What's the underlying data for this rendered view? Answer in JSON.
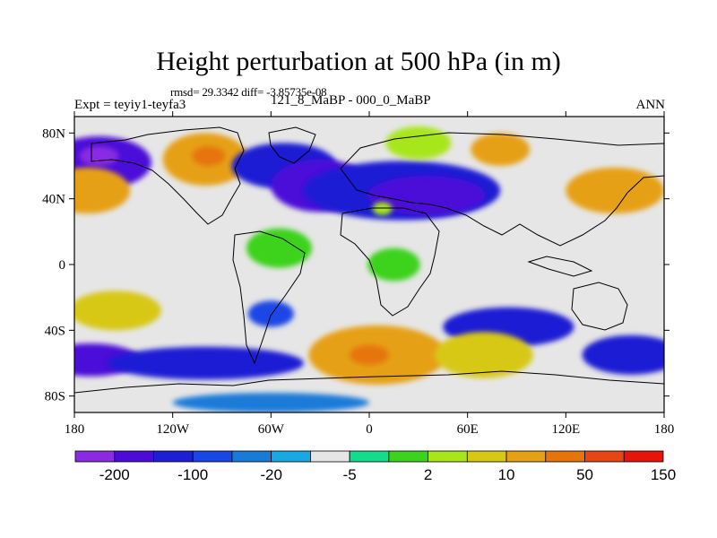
{
  "title": "Height perturbation at 500 hPa (in m)",
  "stats": "rmsd= 29.3342 diff= -3.85735e-08",
  "experiment": "Expt = teyiy1-teyfa3",
  "comparison": "121_8_MaBP - 000_0_MaBP",
  "season": "ANN",
  "map": {
    "lon_range": [
      -180,
      180
    ],
    "lat_range": [
      -90,
      90
    ],
    "x_ticks": [
      {
        "value": -180,
        "label": "180"
      },
      {
        "value": -120,
        "label": "120W"
      },
      {
        "value": -60,
        "label": "60W"
      },
      {
        "value": 0,
        "label": "0"
      },
      {
        "value": 60,
        "label": "60E"
      },
      {
        "value": 120,
        "label": "120E"
      },
      {
        "value": 180,
        "label": "180"
      }
    ],
    "y_ticks": [
      {
        "value": 80,
        "label": "80N"
      },
      {
        "value": 40,
        "label": "40N"
      },
      {
        "value": 0,
        "label": "0"
      },
      {
        "value": -40,
        "label": "40S"
      },
      {
        "value": -80,
        "label": "80S"
      }
    ],
    "fill_regions": [
      {
        "name": "tropical-neutral-band",
        "level": 6,
        "lat": 0,
        "lon": 0,
        "lat_extent": 20,
        "lon_extent": 200
      },
      {
        "name": "north-pacific-low",
        "level": 1,
        "lat": 62,
        "lon": -165,
        "lat_extent": 16,
        "lon_extent": 32
      },
      {
        "name": "north-pacific-low-core",
        "level": 0,
        "lat": 66,
        "lon": -165,
        "lat_extent": 6,
        "lon_extent": 12
      },
      {
        "name": "west-pacific-high",
        "level": 11,
        "lat": 45,
        "lon": -172,
        "lat_extent": 14,
        "lon_extent": 26
      },
      {
        "name": "west-north-america-high",
        "level": 11,
        "lat": 64,
        "lon": -100,
        "lat_extent": 16,
        "lon_extent": 26
      },
      {
        "name": "west-north-america-high-core",
        "level": 12,
        "lat": 66,
        "lon": -98,
        "lat_extent": 6,
        "lon_extent": 10
      },
      {
        "name": "east-north-america-low",
        "level": 2,
        "lat": 60,
        "lon": -52,
        "lat_extent": 14,
        "lon_extent": 32
      },
      {
        "name": "north-atlantic-low",
        "level": 1,
        "lat": 48,
        "lon": -30,
        "lat_extent": 16,
        "lon_extent": 30
      },
      {
        "name": "eurasia-low-band",
        "level": 2,
        "lat": 45,
        "lon": 20,
        "lat_extent": 18,
        "lon_extent": 60
      },
      {
        "name": "central-asia-low-core",
        "level": 1,
        "lat": 42,
        "lon": 35,
        "lat_extent": 12,
        "lon_extent": 36
      },
      {
        "name": "mediterranean-high",
        "level": 9,
        "lat": 34,
        "lon": 8,
        "lat_extent": 4,
        "lon_extent": 6
      },
      {
        "name": "arctic-eurasia-high",
        "level": 9,
        "lat": 74,
        "lon": 30,
        "lat_extent": 10,
        "lon_extent": 20
      },
      {
        "name": "siberia-high",
        "level": 11,
        "lat": 70,
        "lon": 80,
        "lat_extent": 10,
        "lon_extent": 18
      },
      {
        "name": "east-asia-high",
        "level": 11,
        "lat": 45,
        "lon": 150,
        "lat_extent": 14,
        "lon_extent": 30
      },
      {
        "name": "south-america-mid-high",
        "level": 8,
        "lat": 10,
        "lon": -55,
        "lat_extent": 12,
        "lon_extent": 20
      },
      {
        "name": "africa-mid-high",
        "level": 8,
        "lat": 0,
        "lon": 15,
        "lat_extent": 10,
        "lon_extent": 16
      },
      {
        "name": "south-pacific-high",
        "level": 10,
        "lat": -28,
        "lon": -155,
        "lat_extent": 12,
        "lon_extent": 28
      },
      {
        "name": "south-america-low",
        "level": 3,
        "lat": -30,
        "lon": -60,
        "lat_extent": 8,
        "lon_extent": 14
      },
      {
        "name": "southern-ocean-low-west",
        "level": 1,
        "lat": -58,
        "lon": -170,
        "lat_extent": 10,
        "lon_extent": 30
      },
      {
        "name": "southern-ocean-low-belt",
        "level": 2,
        "lat": -60,
        "lon": -100,
        "lat_extent": 10,
        "lon_extent": 60
      },
      {
        "name": "indian-ocean-low",
        "level": 2,
        "lat": -38,
        "lon": 85,
        "lat_extent": 12,
        "lon_extent": 40
      },
      {
        "name": "south-atlantic-high",
        "level": 11,
        "lat": -55,
        "lon": 5,
        "lat_extent": 18,
        "lon_extent": 42
      },
      {
        "name": "south-atlantic-high-core",
        "level": 12,
        "lat": -55,
        "lon": 0,
        "lat_extent": 6,
        "lon_extent": 12
      },
      {
        "name": "south-indian-high",
        "level": 10,
        "lat": -55,
        "lon": 70,
        "lat_extent": 14,
        "lon_extent": 30
      },
      {
        "name": "antarctic-low",
        "level": 4,
        "lat": -84,
        "lon": -60,
        "lat_extent": 6,
        "lon_extent": 60
      },
      {
        "name": "southwest-pacific-low",
        "level": 2,
        "lat": -55,
        "lon": 160,
        "lat_extent": 12,
        "lon_extent": 30
      }
    ]
  },
  "colorbar": {
    "colors": [
      "#8a2be2",
      "#4b0bd8",
      "#1e1ed4",
      "#1a46e6",
      "#1a7ad8",
      "#18a8e2",
      "#e6e6e6",
      "#14dc8c",
      "#3cd21e",
      "#a8e61a",
      "#d8c814",
      "#e6a014",
      "#e6740a",
      "#e64614",
      "#e6140a"
    ],
    "labels": [
      "-200",
      "-100",
      "-20",
      "-5",
      "2",
      "10",
      "50",
      "150"
    ]
  }
}
